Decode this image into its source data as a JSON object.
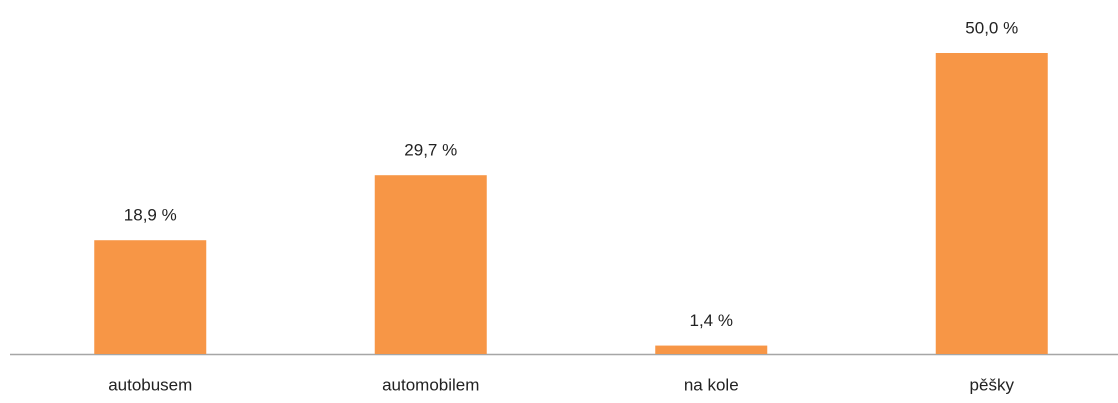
{
  "chart_data": {
    "type": "bar",
    "categories": [
      "autobusem",
      "automobilem",
      "na kole",
      "pěšky"
    ],
    "values": [
      18.9,
      29.7,
      1.4,
      50.0
    ],
    "value_labels": [
      "18,9 %",
      "29,7 %",
      "1,4 %",
      "50,0 %"
    ],
    "color": "#f79646"
  }
}
